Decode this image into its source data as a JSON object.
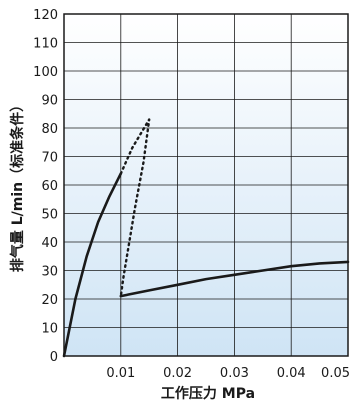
{
  "chart_data": {
    "type": "line",
    "xlabel": "工作压力 MPa",
    "ylabel": "排气量 L/min（标准条件）",
    "xlim": [
      0,
      0.05
    ],
    "ylim": [
      0,
      120
    ],
    "x_ticks": [
      "0.01",
      "0.02",
      "0.03",
      "0.04",
      "0.05"
    ],
    "y_ticks": [
      "0",
      "10",
      "20",
      "30",
      "40",
      "50",
      "60",
      "70",
      "80",
      "90",
      "100",
      "110",
      "120"
    ],
    "grid": true,
    "background": "gradient light blue",
    "series": [
      {
        "style": "solid",
        "x": [
          0,
          0.002,
          0.004,
          0.006,
          0.008,
          0.01
        ],
        "y": [
          0,
          20,
          35,
          47,
          56,
          64
        ]
      },
      {
        "style": "dotted",
        "x": [
          0.01,
          0.012,
          0.015,
          0.014,
          0.0125,
          0.0115,
          0.0105,
          0.01
        ],
        "y": [
          64,
          73,
          83,
          68,
          52,
          40,
          28,
          21
        ]
      },
      {
        "style": "solid",
        "x": [
          0.01,
          0.015,
          0.02,
          0.025,
          0.03,
          0.035,
          0.04,
          0.045,
          0.05
        ],
        "y": [
          21,
          23,
          25,
          27,
          28.5,
          30,
          31.5,
          32.5,
          33
        ]
      }
    ],
    "colors": {
      "line": "#1a1a1a",
      "grid": "#1a1a1a",
      "bg_top": "#ffffff",
      "bg_bottom": "#cfe4f5"
    }
  }
}
